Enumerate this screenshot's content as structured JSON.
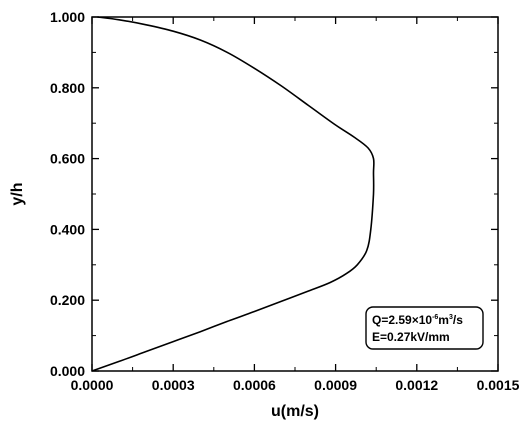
{
  "chart_data": {
    "type": "line",
    "xlabel": "u(m/s)",
    "ylabel": "y/h",
    "xlim": [
      0,
      0.0015
    ],
    "ylim": [
      0,
      1
    ],
    "x_ticks": [
      "0.0000",
      "0.0003",
      "0.0006",
      "0.0009",
      "0.0012",
      "0.0015"
    ],
    "y_ticks": [
      "0.000",
      "0.200",
      "0.400",
      "0.600",
      "0.800",
      "1.000"
    ],
    "grid": false,
    "series": [
      {
        "color": "#000000",
        "points": [
          [
            0.0,
            0.0
          ],
          [
            0.0001,
            0.027
          ],
          [
            0.0002,
            0.055
          ],
          [
            0.0003,
            0.083
          ],
          [
            0.0004,
            0.111
          ],
          [
            0.0005,
            0.14
          ],
          [
            0.0006,
            0.168
          ],
          [
            0.0007,
            0.197
          ],
          [
            0.0008,
            0.226
          ],
          [
            0.00088,
            0.25
          ],
          [
            0.00094,
            0.275
          ],
          [
            0.00098,
            0.3
          ],
          [
            0.001015,
            0.34
          ],
          [
            0.00103,
            0.4
          ],
          [
            0.00104,
            0.5
          ],
          [
            0.00104,
            0.56
          ],
          [
            0.00104,
            0.6
          ],
          [
            0.00102,
            0.63
          ],
          [
            0.00097,
            0.66
          ],
          [
            0.0009,
            0.695
          ],
          [
            0.0008,
            0.75
          ],
          [
            0.0007,
            0.805
          ],
          [
            0.0006,
            0.855
          ],
          [
            0.0005,
            0.9
          ],
          [
            0.0004,
            0.935
          ],
          [
            0.0003,
            0.96
          ],
          [
            0.0002,
            0.978
          ],
          [
            0.0001,
            0.992
          ],
          [
            2e-05,
            1.0
          ]
        ]
      }
    ],
    "annotation": {
      "line1_prefix": "Q=2.59×10",
      "line1_exp": "-6",
      "line1_unit": "m",
      "line1_unit_exp": "3",
      "line1_suffix": "/s",
      "line2": "E=0.27kV/mm",
      "position": "bottom-right"
    }
  }
}
